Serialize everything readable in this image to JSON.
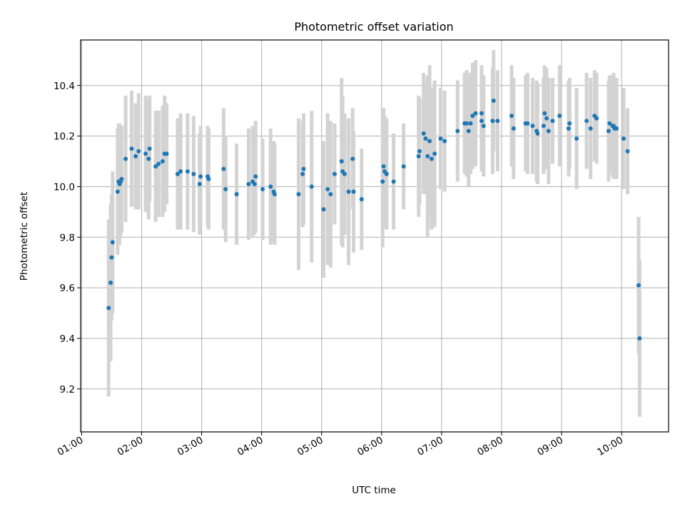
{
  "chart_data": {
    "type": "scatter",
    "title": "Photometric offset variation",
    "xlabel": "UTC time",
    "ylabel": "Photometric offset",
    "x_ticks": [
      "01:00",
      "02:00",
      "03:00",
      "04:00",
      "05:00",
      "06:00",
      "07:00",
      "08:00",
      "09:00",
      "10:00"
    ],
    "y_ticks": [
      "9.2",
      "9.4",
      "9.6",
      "9.8",
      "10.0",
      "10.2",
      "10.4"
    ],
    "xlim": [
      "00:59",
      "10:47"
    ],
    "ylim": [
      9.03,
      10.58
    ],
    "grid": true,
    "colors": {
      "point": "#1f77b4",
      "errorbar": "#d3d3d3",
      "grid": "#b0b0b0"
    },
    "series": [
      {
        "points": [
          {
            "x": "01:27",
            "y": 9.52,
            "e": 0.35
          },
          {
            "x": "01:29",
            "y": 9.62,
            "e": 0.31
          },
          {
            "x": "01:30",
            "y": 9.72,
            "e": 0.25
          },
          {
            "x": "01:31",
            "y": 9.78,
            "e": 0.28
          },
          {
            "x": "01:36",
            "y": 9.98,
            "e": 0.25
          },
          {
            "x": "01:37",
            "y": 10.02,
            "e": 0.23
          },
          {
            "x": "01:38",
            "y": 10.01,
            "e": 0.24
          },
          {
            "x": "01:39",
            "y": 10.02,
            "e": 0.22
          },
          {
            "x": "01:40",
            "y": 10.03,
            "e": 0.21
          },
          {
            "x": "01:44",
            "y": 10.11,
            "e": 0.25
          },
          {
            "x": "01:50",
            "y": 10.15,
            "e": 0.23
          },
          {
            "x": "01:54",
            "y": 10.12,
            "e": 0.21
          },
          {
            "x": "01:57",
            "y": 10.14,
            "e": 0.23
          },
          {
            "x": "02:04",
            "y": 10.13,
            "e": 0.23
          },
          {
            "x": "02:07",
            "y": 10.11,
            "e": 0.24
          },
          {
            "x": "02:08",
            "y": 10.15,
            "e": 0.21
          },
          {
            "x": "02:14",
            "y": 10.08,
            "e": 0.22
          },
          {
            "x": "02:17",
            "y": 10.09,
            "e": 0.21
          },
          {
            "x": "02:21",
            "y": 10.1,
            "e": 0.22
          },
          {
            "x": "02:23",
            "y": 10.13,
            "e": 0.23
          },
          {
            "x": "02:25",
            "y": 10.13,
            "e": 0.2
          },
          {
            "x": "02:36",
            "y": 10.05,
            "e": 0.22
          },
          {
            "x": "02:39",
            "y": 10.06,
            "e": 0.23
          },
          {
            "x": "02:46",
            "y": 10.06,
            "e": 0.23
          },
          {
            "x": "02:52",
            "y": 10.05,
            "e": 0.23
          },
          {
            "x": "02:58",
            "y": 10.01,
            "e": 0.2
          },
          {
            "x": "02:59",
            "y": 10.04,
            "e": 0.2
          },
          {
            "x": "03:06",
            "y": 10.04,
            "e": 0.2
          },
          {
            "x": "03:07",
            "y": 10.03,
            "e": 0.2
          },
          {
            "x": "03:22",
            "y": 10.07,
            "e": 0.24
          },
          {
            "x": "03:24",
            "y": 9.99,
            "e": 0.21
          },
          {
            "x": "03:35",
            "y": 9.97,
            "e": 0.2
          },
          {
            "x": "03:47",
            "y": 10.01,
            "e": 0.22
          },
          {
            "x": "03:51",
            "y": 10.02,
            "e": 0.22
          },
          {
            "x": "03:53",
            "y": 10.01,
            "e": 0.2
          },
          {
            "x": "03:54",
            "y": 10.04,
            "e": 0.22
          },
          {
            "x": "04:01",
            "y": 9.99,
            "e": 0.2
          },
          {
            "x": "04:09",
            "y": 10.0,
            "e": 0.23
          },
          {
            "x": "04:12",
            "y": 9.98,
            "e": 0.2
          },
          {
            "x": "04:13",
            "y": 9.97,
            "e": 0.2
          },
          {
            "x": "04:37",
            "y": 9.97,
            "e": 0.3
          },
          {
            "x": "04:41",
            "y": 10.05,
            "e": 0.21
          },
          {
            "x": "04:42",
            "y": 10.07,
            "e": 0.22
          },
          {
            "x": "04:50",
            "y": 10.0,
            "e": 0.3
          },
          {
            "x": "05:02",
            "y": 9.91,
            "e": 0.27
          },
          {
            "x": "05:06",
            "y": 9.99,
            "e": 0.3
          },
          {
            "x": "05:09",
            "y": 9.97,
            "e": 0.29
          },
          {
            "x": "05:13",
            "y": 10.05,
            "e": 0.2
          },
          {
            "x": "05:20",
            "y": 10.1,
            "e": 0.33
          },
          {
            "x": "05:21",
            "y": 10.06,
            "e": 0.3
          },
          {
            "x": "05:23",
            "y": 10.05,
            "e": 0.24
          },
          {
            "x": "05:27",
            "y": 9.98,
            "e": 0.29
          },
          {
            "x": "05:31",
            "y": 10.11,
            "e": 0.2
          },
          {
            "x": "05:32",
            "y": 9.98,
            "e": 0.24
          },
          {
            "x": "05:40",
            "y": 9.95,
            "e": 0.2
          },
          {
            "x": "06:01",
            "y": 10.02,
            "e": 0.26
          },
          {
            "x": "06:02",
            "y": 10.08,
            "e": 0.23
          },
          {
            "x": "06:03",
            "y": 10.06,
            "e": 0.22
          },
          {
            "x": "06:05",
            "y": 10.05,
            "e": 0.22
          },
          {
            "x": "06:12",
            "y": 10.02,
            "e": 0.19
          },
          {
            "x": "06:22",
            "y": 10.08,
            "e": 0.17
          },
          {
            "x": "06:37",
            "y": 10.12,
            "e": 0.24
          },
          {
            "x": "06:38",
            "y": 10.14,
            "e": 0.21
          },
          {
            "x": "06:42",
            "y": 10.21,
            "e": 0.24
          },
          {
            "x": "06:44",
            "y": 10.19,
            "e": 0.22
          },
          {
            "x": "06:46",
            "y": 10.12,
            "e": 0.32
          },
          {
            "x": "06:48",
            "y": 10.18,
            "e": 0.3
          },
          {
            "x": "06:50",
            "y": 10.11,
            "e": 0.28
          },
          {
            "x": "06:53",
            "y": 10.13,
            "e": 0.29
          },
          {
            "x": "06:59",
            "y": 10.19,
            "e": 0.2
          },
          {
            "x": "07:03",
            "y": 10.18,
            "e": 0.2
          },
          {
            "x": "07:16",
            "y": 10.22,
            "e": 0.2
          },
          {
            "x": "07:23",
            "y": 10.25,
            "e": 0.2
          },
          {
            "x": "07:25",
            "y": 10.25,
            "e": 0.21
          },
          {
            "x": "07:27",
            "y": 10.22,
            "e": 0.22
          },
          {
            "x": "07:29",
            "y": 10.25,
            "e": 0.2
          },
          {
            "x": "07:31",
            "y": 10.28,
            "e": 0.21
          },
          {
            "x": "07:34",
            "y": 10.29,
            "e": 0.21
          },
          {
            "x": "07:40",
            "y": 10.29,
            "e": 0.19
          },
          {
            "x": "07:40",
            "y": 10.26,
            "e": 0.2
          },
          {
            "x": "07:42",
            "y": 10.24,
            "e": 0.2
          },
          {
            "x": "07:51",
            "y": 10.26,
            "e": 0.21
          },
          {
            "x": "07:52",
            "y": 10.34,
            "e": 0.2
          },
          {
            "x": "07:56",
            "y": 10.26,
            "e": 0.2
          },
          {
            "x": "08:10",
            "y": 10.28,
            "e": 0.2
          },
          {
            "x": "08:12",
            "y": 10.23,
            "e": 0.2
          },
          {
            "x": "08:24",
            "y": 10.25,
            "e": 0.19
          },
          {
            "x": "08:26",
            "y": 10.25,
            "e": 0.2
          },
          {
            "x": "08:31",
            "y": 10.24,
            "e": 0.19
          },
          {
            "x": "08:35",
            "y": 10.22,
            "e": 0.2
          },
          {
            "x": "08:36",
            "y": 10.21,
            "e": 0.2
          },
          {
            "x": "08:42",
            "y": 10.24,
            "e": 0.19
          },
          {
            "x": "08:43",
            "y": 10.29,
            "e": 0.19
          },
          {
            "x": "08:45",
            "y": 10.27,
            "e": 0.2
          },
          {
            "x": "08:47",
            "y": 10.22,
            "e": 0.21
          },
          {
            "x": "08:51",
            "y": 10.26,
            "e": 0.17
          },
          {
            "x": "08:58",
            "y": 10.28,
            "e": 0.2
          },
          {
            "x": "09:07",
            "y": 10.23,
            "e": 0.19
          },
          {
            "x": "09:08",
            "y": 10.25,
            "e": 0.18
          },
          {
            "x": "09:15",
            "y": 10.19,
            "e": 0.2
          },
          {
            "x": "09:25",
            "y": 10.26,
            "e": 0.19
          },
          {
            "x": "09:29",
            "y": 10.23,
            "e": 0.2
          },
          {
            "x": "09:33",
            "y": 10.28,
            "e": 0.18
          },
          {
            "x": "09:35",
            "y": 10.27,
            "e": 0.18
          },
          {
            "x": "09:47",
            "y": 10.22,
            "e": 0.2
          },
          {
            "x": "09:48",
            "y": 10.25,
            "e": 0.19
          },
          {
            "x": "09:51",
            "y": 10.24,
            "e": 0.2
          },
          {
            "x": "09:52",
            "y": 10.24,
            "e": 0.21
          },
          {
            "x": "09:53",
            "y": 10.23,
            "e": 0.2
          },
          {
            "x": "09:55",
            "y": 10.23,
            "e": 0.2
          },
          {
            "x": "10:02",
            "y": 10.19,
            "e": 0.2
          },
          {
            "x": "10:06",
            "y": 10.14,
            "e": 0.17
          },
          {
            "x": "10:17",
            "y": 9.61,
            "e": 0.27
          },
          {
            "x": "10:18",
            "y": 9.4,
            "e": 0.31
          }
        ]
      }
    ]
  }
}
